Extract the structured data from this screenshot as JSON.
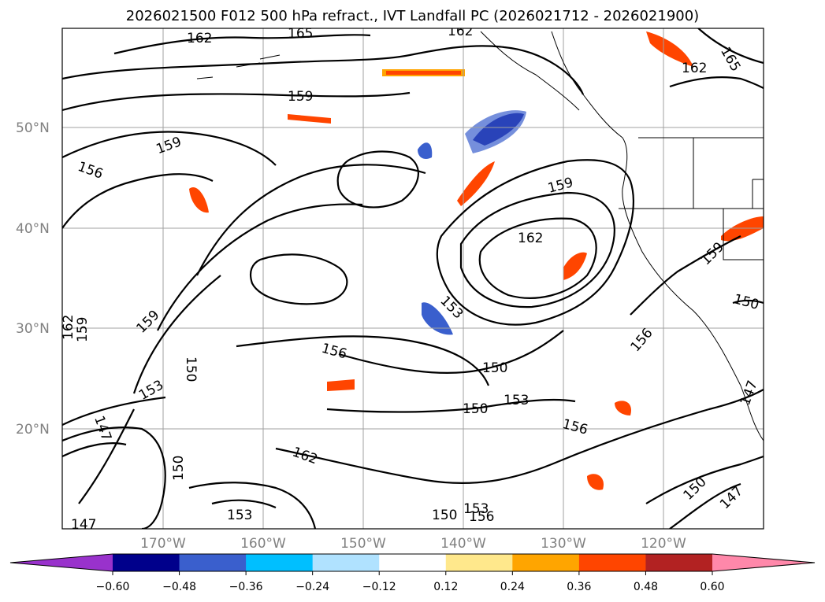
{
  "title": "2026021500 F012 500 hPa refract., IVT Landfall PC (2026021712 - 2026021900)",
  "lat_labels": [
    "50°N",
    "40°N",
    "30°N",
    "20°N"
  ],
  "lon_labels": [
    "170°W",
    "160°W",
    "150°W",
    "140°W",
    "130°W",
    "120°W"
  ],
  "contour_labels": [
    "162",
    "165",
    "162",
    "162",
    "165",
    "159",
    "159",
    "156",
    "159",
    "162",
    "159",
    "153",
    "156",
    "156",
    "159",
    "150",
    "153",
    "150",
    "153",
    "150",
    "156",
    "147",
    "150",
    "162",
    "153",
    "150",
    "147",
    "150",
    "153",
    "156",
    "147",
    "150",
    "159",
    "147",
    "162"
  ],
  "colorbar": {
    "ticks": [
      "−0.60",
      "−0.48",
      "−0.36",
      "−0.24",
      "−0.12",
      "0.12",
      "0.24",
      "0.36",
      "0.48",
      "0.60"
    ],
    "colors": [
      "#9932cc",
      "#00008b",
      "#3a5fcd",
      "#00bfff",
      "#b0e2ff",
      "#ffffff",
      "#ffe88c",
      "#ffa500",
      "#ff4500",
      "#b22222",
      "#ff88aa"
    ]
  },
  "colors": {
    "contour": "#000000",
    "grid": "#a0a0a0",
    "coast": "#000000"
  }
}
